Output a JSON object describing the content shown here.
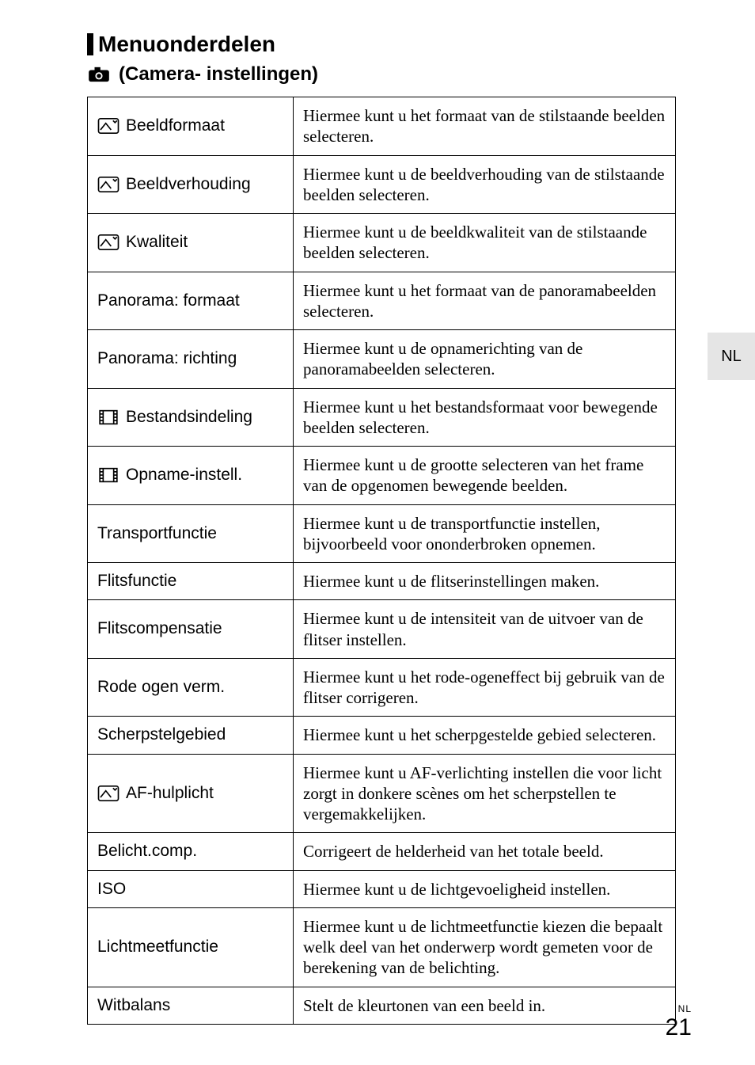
{
  "side_tab": "NL",
  "heading": "Menuonderdelen",
  "subheading": "(Camera- instellingen)",
  "rows": [
    {
      "icon": "photo",
      "label": "Beeldformaat",
      "desc": "Hiermee kunt u het formaat van de stilstaande beelden selecteren."
    },
    {
      "icon": "photo",
      "label": "Beeldverhouding",
      "desc": "Hiermee kunt u de beeldverhouding van de stilstaande beelden selecteren."
    },
    {
      "icon": "photo",
      "label": "Kwaliteit",
      "desc": "Hiermee kunt u de beeldkwaliteit van de stilstaande beelden selecteren."
    },
    {
      "icon": null,
      "label": "Panorama: formaat",
      "desc": "Hiermee kunt u het formaat van de panoramabeelden selecteren."
    },
    {
      "icon": null,
      "label": "Panorama: richting",
      "desc": "Hiermee kunt u de opnamerichting van de panoramabeelden selecteren."
    },
    {
      "icon": "film",
      "label": "Bestandsindeling",
      "desc": "Hiermee kunt u het bestandsformaat voor bewegende beelden selecteren."
    },
    {
      "icon": "film",
      "label": "Opname-instell.",
      "desc": "Hiermee kunt u de grootte selecteren van het frame van de opgenomen bewegende beelden."
    },
    {
      "icon": null,
      "label": "Transportfunctie",
      "desc": "Hiermee kunt u de transportfunctie instellen, bijvoorbeeld voor ononderbroken opnemen."
    },
    {
      "icon": null,
      "label": "Flitsfunctie",
      "desc": "Hiermee kunt u de flitserinstellingen maken."
    },
    {
      "icon": null,
      "label": "Flitscompensatie",
      "desc": "Hiermee kunt u de intensiteit van de uitvoer van de flitser instellen."
    },
    {
      "icon": null,
      "label": "Rode ogen verm.",
      "desc": "Hiermee kunt u het rode-ogeneffect bij gebruik van de flitser corrigeren."
    },
    {
      "icon": null,
      "label": "Scherpstelgebied",
      "desc": "Hiermee kunt u het scherpgestelde gebied selecteren."
    },
    {
      "icon": "photo",
      "label": "AF-hulplicht",
      "desc": "Hiermee kunt u AF-verlichting instellen die voor licht zorgt in donkere scènes om het scherpstellen te vergemakkelijken."
    },
    {
      "icon": null,
      "label": "Belicht.comp.",
      "desc": "Corrigeert de helderheid van het totale beeld."
    },
    {
      "icon": null,
      "label": "ISO",
      "desc": "Hiermee kunt u de lichtgevoeligheid instellen."
    },
    {
      "icon": null,
      "label": "Lichtmeetfunctie",
      "desc": "Hiermee kunt u de lichtmeetfunctie kiezen die bepaalt welk deel van het onderwerp wordt gemeten voor de berekening van de belichting."
    },
    {
      "icon": null,
      "label": "Witbalans",
      "desc": "Stelt de kleurtonen van een beeld in."
    }
  ],
  "footer_small": "NL",
  "page_number": "21",
  "colors": {
    "bg": "#ffffff",
    "text": "#000000",
    "sidetab": "#e5e5e5",
    "border": "#000000"
  }
}
